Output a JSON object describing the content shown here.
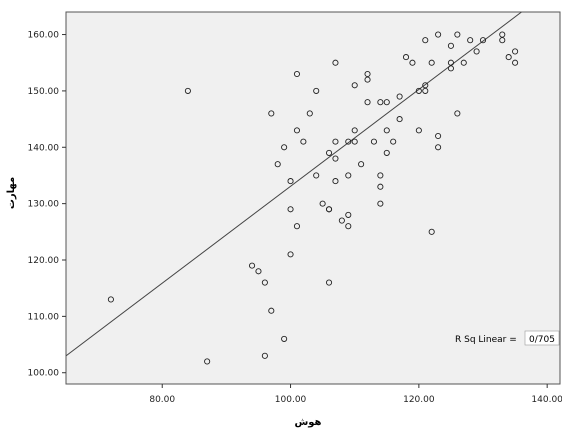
{
  "chart_data": {
    "type": "scatter",
    "title": "",
    "xlabel": "هوش",
    "ylabel": "مهارت",
    "xlim": [
      65,
      142
    ],
    "ylim": [
      98,
      164
    ],
    "xticks": [
      80,
      100,
      120,
      140
    ],
    "xtick_labels": [
      "80.00",
      "100.00",
      "120.00",
      "140.00"
    ],
    "yticks": [
      100,
      110,
      120,
      130,
      140,
      150,
      160
    ],
    "ytick_labels": [
      "100.00",
      "110.00",
      "120.00",
      "130.00",
      "140.00",
      "150.00",
      "160.00"
    ],
    "grid": false,
    "legend": "none",
    "fit_line": {
      "type": "linear",
      "label": "R Sq Linear = ",
      "r_squared": "0/705",
      "points": [
        [
          65,
          103
        ],
        [
          136,
          164
        ]
      ]
    },
    "points": [
      [
        72,
        113
      ],
      [
        84,
        150
      ],
      [
        87,
        102
      ],
      [
        94,
        119
      ],
      [
        95,
        118
      ],
      [
        96,
        116
      ],
      [
        96,
        103
      ],
      [
        97,
        146
      ],
      [
        97,
        111
      ],
      [
        98,
        137
      ],
      [
        99,
        140
      ],
      [
        99,
        106
      ],
      [
        100,
        134
      ],
      [
        100,
        129
      ],
      [
        100,
        121
      ],
      [
        101,
        153
      ],
      [
        101,
        143
      ],
      [
        101,
        126
      ],
      [
        102,
        141
      ],
      [
        103,
        146
      ],
      [
        104,
        150
      ],
      [
        104,
        135
      ],
      [
        105,
        130
      ],
      [
        106,
        139
      ],
      [
        106,
        129
      ],
      [
        106,
        129
      ],
      [
        106,
        116
      ],
      [
        107,
        155
      ],
      [
        107,
        141
      ],
      [
        107,
        138
      ],
      [
        107,
        134
      ],
      [
        108,
        127
      ],
      [
        109,
        141
      ],
      [
        109,
        135
      ],
      [
        109,
        128
      ],
      [
        109,
        126
      ],
      [
        110,
        151
      ],
      [
        110,
        143
      ],
      [
        110,
        141
      ],
      [
        111,
        137
      ],
      [
        112,
        153
      ],
      [
        112,
        152
      ],
      [
        112,
        148
      ],
      [
        113,
        141
      ],
      [
        114,
        148
      ],
      [
        114,
        135
      ],
      [
        114,
        133
      ],
      [
        114,
        130
      ],
      [
        115,
        148
      ],
      [
        115,
        143
      ],
      [
        115,
        139
      ],
      [
        116,
        141
      ],
      [
        117,
        149
      ],
      [
        117,
        145
      ],
      [
        118,
        156
      ],
      [
        119,
        155
      ],
      [
        120,
        150
      ],
      [
        120,
        143
      ],
      [
        121,
        150
      ],
      [
        121,
        151
      ],
      [
        121,
        159
      ],
      [
        122,
        155
      ],
      [
        122,
        125
      ],
      [
        123,
        160
      ],
      [
        123,
        142
      ],
      [
        123,
        140
      ],
      [
        125,
        155
      ],
      [
        125,
        154
      ],
      [
        125,
        158
      ],
      [
        126,
        160
      ],
      [
        126,
        146
      ],
      [
        127,
        155
      ],
      [
        128,
        159
      ],
      [
        129,
        157
      ],
      [
        130,
        159
      ],
      [
        133,
        160
      ],
      [
        133,
        159
      ],
      [
        134,
        156
      ],
      [
        135,
        157
      ],
      [
        135,
        155
      ]
    ]
  }
}
